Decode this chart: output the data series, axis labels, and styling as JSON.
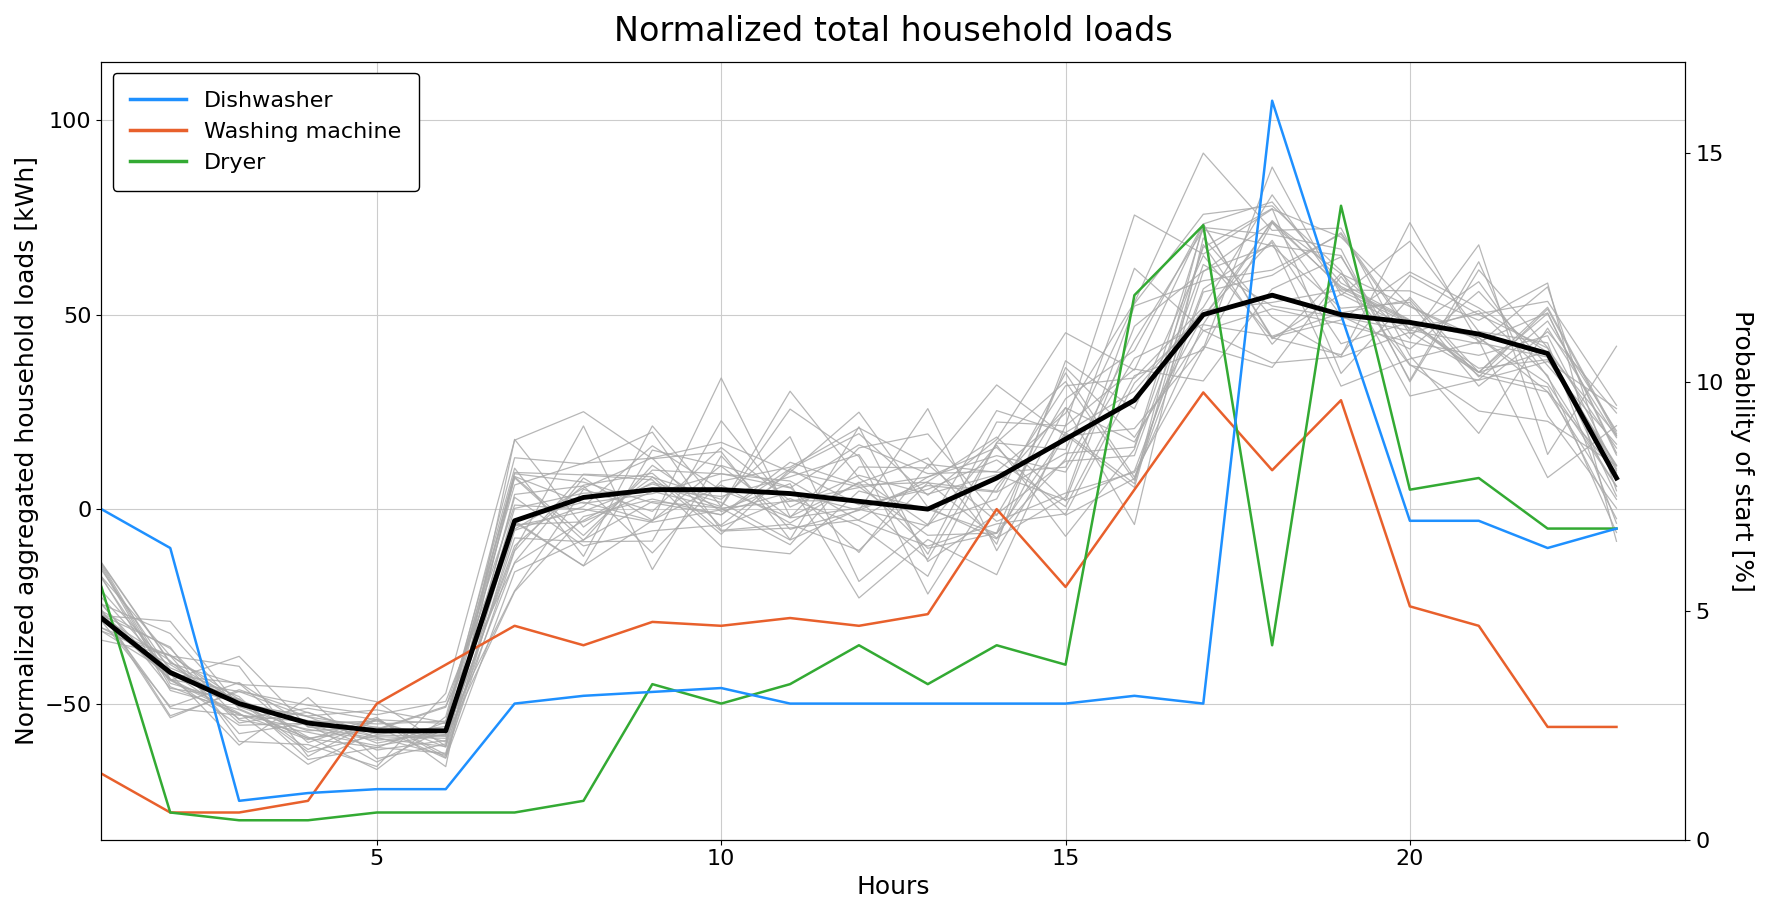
{
  "title": "Normalized total household loads",
  "xlabel": "Hours",
  "ylabel_left": "Normalized aggregated household loads [kWh]",
  "ylabel_right": "Probability of start [%]",
  "ylim_left": [
    -85,
    115
  ],
  "ylim_right": [
    0,
    17
  ],
  "xlim": [
    1,
    24
  ],
  "xticks": [
    5,
    10,
    15,
    20
  ],
  "yticks_left": [
    -50,
    0,
    50,
    100
  ],
  "yticks_right": [
    0,
    5,
    10,
    15
  ],
  "background_color": "#ffffff",
  "title_fontsize": 24,
  "axis_fontsize": 18,
  "tick_fontsize": 16,
  "dishwasher_color": "#1E90FF",
  "washing_machine_color": "#E8602C",
  "dryer_color": "#33AA33",
  "mean_color": "#000000",
  "gray_color": "#aaaaaa",
  "dishwasher": [
    0,
    -10,
    -75,
    -73,
    -72,
    -72,
    -50,
    -48,
    -47,
    -46,
    -50,
    -50,
    -50,
    -50,
    -50,
    -48,
    -50,
    105,
    50,
    -3,
    -3,
    -10,
    -5
  ],
  "washing_machine": [
    -68,
    -78,
    -78,
    -75,
    -50,
    -40,
    -30,
    -35,
    -29,
    -30,
    -28,
    -30,
    -27,
    0,
    -20,
    5,
    30,
    10,
    28,
    -25,
    -30,
    -56,
    -56
  ],
  "dryer": [
    -20,
    -78,
    -80,
    -80,
    -78,
    -78,
    -78,
    -75,
    -45,
    -50,
    -45,
    -35,
    -45,
    -35,
    -40,
    55,
    73,
    -35,
    78,
    5,
    8,
    -5,
    -5
  ],
  "mean_curve": [
    -28,
    -42,
    -50,
    -55,
    -57,
    -57,
    -3,
    3,
    5,
    5,
    4,
    2,
    0,
    8,
    18,
    28,
    50,
    55,
    50,
    48,
    45,
    40,
    8
  ]
}
